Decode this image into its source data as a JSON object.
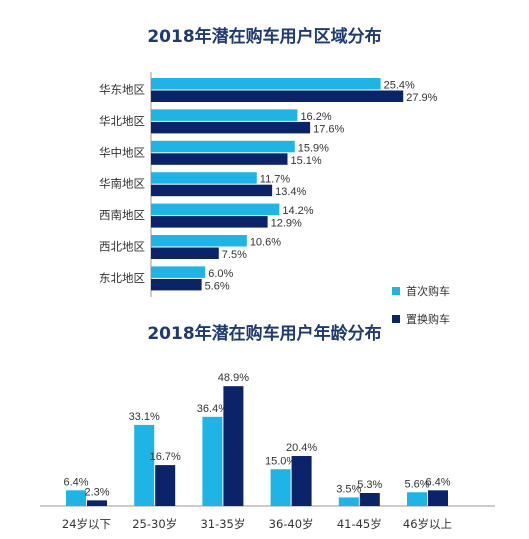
{
  "colors": {
    "first": "#1fb4e6",
    "replace": "#0b2369",
    "text": "#333333",
    "title": "#1f3a6e",
    "axis": "#999999"
  },
  "legend": {
    "first": "首次购车",
    "replace": "置换购车"
  },
  "chart_data": [
    {
      "type": "bar",
      "orientation": "horizontal",
      "title": "2018年潜在购车用户区域分布",
      "categories": [
        "华东地区",
        "华北地区",
        "华中地区",
        "华南地区",
        "西南地区",
        "西北地区",
        "东北地区"
      ],
      "series": [
        {
          "name": "首次购车",
          "values": [
            25.4,
            16.2,
            15.9,
            11.7,
            14.2,
            10.6,
            6.0
          ],
          "labels": [
            "25.4%",
            "16.2%",
            "15.9%",
            "11.7%",
            "14.2%",
            "10.6%",
            "6.0%"
          ]
        },
        {
          "name": "置换购车",
          "values": [
            27.9,
            17.6,
            15.1,
            13.4,
            12.9,
            7.5,
            5.6
          ],
          "labels": [
            "27.9%",
            "17.6%",
            "15.1%",
            "13.4%",
            "12.9%",
            "7.5%",
            "5.6%"
          ]
        }
      ],
      "unit": "%",
      "legend_position": "right",
      "grid": false
    },
    {
      "type": "bar",
      "orientation": "vertical",
      "title": "2018年潜在购车用户年龄分布",
      "categories": [
        "24岁以下",
        "25-30岁",
        "31-35岁",
        "36-40岁",
        "41-45岁",
        "46岁以上"
      ],
      "series": [
        {
          "name": "首次购车",
          "values": [
            6.4,
            33.1,
            36.4,
            15.0,
            3.5,
            5.6
          ],
          "labels": [
            "6.4%",
            "33.1%",
            "36.4%",
            "15.0%",
            "3.5%",
            "5.6%"
          ]
        },
        {
          "name": "置换购车",
          "values": [
            2.3,
            16.7,
            48.9,
            20.4,
            5.3,
            6.4
          ],
          "labels": [
            "2.3%",
            "16.7%",
            "48.9%",
            "20.4%",
            "5.3%",
            "6.4%"
          ]
        }
      ],
      "unit": "%",
      "grid": false
    }
  ]
}
